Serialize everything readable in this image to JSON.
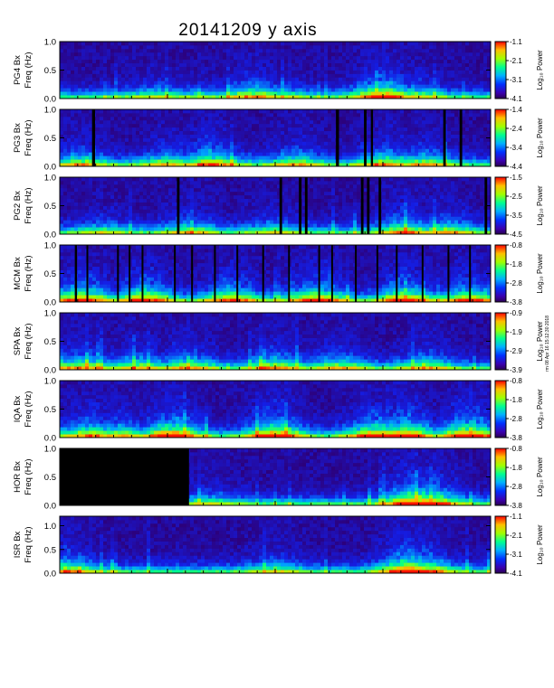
{
  "chart_data": {
    "type": "heatmap",
    "title": "20141209 y axis",
    "colorscale": "rainbow",
    "side_note": "rm 08 Apr 16 15:12:30 2018",
    "panels": [
      {
        "name": "PG4 Bx",
        "ylabel_top": "PG4 Bx",
        "ylabel_bottom": "Freq (Hz)",
        "ylim": [
          0,
          1.0
        ],
        "yticks": [
          "1.0",
          "0.5",
          "0.0"
        ],
        "colorbar_label": "Log₁₀ Power",
        "colorbar_ticks": [
          "-1.1",
          "-2.1",
          "-3.1",
          "-4.1"
        ],
        "colorbar_range": [
          -4.1,
          -1.1
        ],
        "data_gaps": [],
        "activity": [
          [
            0.22,
            0.3
          ],
          [
            0.33,
            0.15
          ],
          [
            0.45,
            0.55
          ],
          [
            0.52,
            0.25
          ],
          [
            0.75,
            0.85
          ],
          [
            0.82,
            0.4
          ]
        ]
      },
      {
        "name": "PG3 Bx",
        "ylabel_top": "PG3 Bx",
        "ylabel_bottom": "Freq (Hz)",
        "ylim": [
          0,
          1.0
        ],
        "yticks": [
          "1.0",
          "0.5",
          "0.0"
        ],
        "colorbar_label": "Log₁₀ Power",
        "colorbar_ticks": [
          "-1.4",
          "-2.4",
          "-3.4",
          "-4.4"
        ],
        "colorbar_range": [
          -4.4,
          -1.4
        ],
        "data_gaps": [
          [
            0.075,
            0.082
          ],
          [
            0.641,
            0.648
          ],
          [
            0.706,
            0.712
          ],
          [
            0.722,
            0.727
          ],
          [
            0.89,
            0.896
          ],
          [
            0.928,
            0.934
          ]
        ],
        "activity": [
          [
            0.05,
            0.5
          ],
          [
            0.25,
            0.45
          ],
          [
            0.35,
            0.7
          ],
          [
            0.55,
            0.5
          ],
          [
            0.75,
            0.6
          ],
          [
            0.85,
            0.5
          ]
        ]
      },
      {
        "name": "PG2 Bx",
        "ylabel_top": "PG2 Bx",
        "ylabel_bottom": "Freq (Hz)",
        "ylim": [
          0,
          1.0
        ],
        "yticks": [
          "1.0",
          "0.5",
          "0.0"
        ],
        "colorbar_label": "Log₁₀ Power",
        "colorbar_ticks": [
          "-1.5",
          "-2.5",
          "-3.5",
          "-4.5"
        ],
        "colorbar_range": [
          -4.5,
          -1.5
        ],
        "data_gaps": [
          [
            0.272,
            0.278
          ],
          [
            0.51,
            0.516
          ],
          [
            0.555,
            0.561
          ],
          [
            0.569,
            0.575
          ],
          [
            0.699,
            0.705
          ],
          [
            0.713,
            0.719
          ],
          [
            0.74,
            0.746
          ],
          [
            0.986,
            0.992
          ]
        ],
        "activity": [
          [
            0.1,
            0.3
          ],
          [
            0.3,
            0.45
          ],
          [
            0.5,
            0.35
          ],
          [
            0.8,
            0.6
          ],
          [
            0.9,
            0.5
          ]
        ]
      },
      {
        "name": "MCM Bx",
        "ylabel_top": "MCM Bx",
        "ylabel_bottom": "Freq (Hz)",
        "ylim": [
          0,
          1.0
        ],
        "yticks": [
          "1.0",
          "0.5",
          "0.0"
        ],
        "colorbar_label": "Log₁₀ Power",
        "colorbar_ticks": [
          "-0.8",
          "-1.8",
          "-2.8",
          "-3.8"
        ],
        "colorbar_range": [
          -3.8,
          -0.8
        ],
        "data_gaps": [
          [
            0.035,
            0.04
          ],
          [
            0.062,
            0.066
          ],
          [
            0.133,
            0.137
          ],
          [
            0.16,
            0.164
          ],
          [
            0.19,
            0.194
          ],
          [
            0.265,
            0.268
          ],
          [
            0.305,
            0.309
          ],
          [
            0.358,
            0.362
          ],
          [
            0.41,
            0.414
          ],
          [
            0.47,
            0.474
          ],
          [
            0.53,
            0.534
          ],
          [
            0.6,
            0.604
          ],
          [
            0.63,
            0.634
          ],
          [
            0.685,
            0.689
          ],
          [
            0.735,
            0.739
          ],
          [
            0.78,
            0.784
          ],
          [
            0.84,
            0.844
          ],
          [
            0.9,
            0.904
          ],
          [
            0.95,
            0.954
          ]
        ],
        "activity": [
          [
            0.05,
            0.8
          ],
          [
            0.2,
            0.8
          ],
          [
            0.4,
            0.7
          ],
          [
            0.6,
            0.8
          ],
          [
            0.8,
            0.8
          ],
          [
            0.95,
            0.7
          ]
        ]
      },
      {
        "name": "SPA Bx",
        "ylabel_top": "SPA Bx",
        "ylabel_bottom": "Freq (Hz)",
        "ylim": [
          0,
          1.0
        ],
        "yticks": [
          "1.0",
          "0.5",
          "0.0"
        ],
        "colorbar_label": "Log₁₀ Power",
        "colorbar_ticks": [
          "-0.9",
          "-1.9",
          "-2.9",
          "-3.9"
        ],
        "colorbar_range": [
          -3.9,
          -0.9
        ],
        "data_gaps": [],
        "activity": [
          [
            0.05,
            0.55
          ],
          [
            0.18,
            0.45
          ],
          [
            0.3,
            0.5
          ],
          [
            0.5,
            0.55
          ],
          [
            0.65,
            0.5
          ],
          [
            0.85,
            0.5
          ]
        ]
      },
      {
        "name": "IQA Bx",
        "ylabel_top": "IQA Bx",
        "ylabel_bottom": "Freq (Hz)",
        "ylim": [
          0,
          1.0
        ],
        "yticks": [
          "1.0",
          "0.5",
          "0.0"
        ],
        "colorbar_label": "Log₁₀ Power",
        "colorbar_ticks": [
          "-0.8",
          "-1.8",
          "-2.8",
          "-3.8"
        ],
        "colorbar_range": [
          -3.8,
          -0.8
        ],
        "data_gaps": [],
        "activity": [
          [
            0.07,
            0.6
          ],
          [
            0.14,
            0.5
          ],
          [
            0.26,
            0.9
          ],
          [
            0.5,
            0.9
          ],
          [
            0.73,
            0.8
          ],
          [
            0.8,
            0.9
          ],
          [
            0.95,
            0.9
          ]
        ]
      },
      {
        "name": "HOR Bx",
        "ylabel_top": "HOR Bx",
        "ylabel_bottom": "Freq (Hz)",
        "ylim": [
          0,
          1.0
        ],
        "yticks": [
          "1.0",
          "0.5",
          "0.0"
        ],
        "colorbar_label": "Log₁₀ Power",
        "colorbar_ticks": [
          "-0.8",
          "-1.8",
          "-2.8",
          "-3.8"
        ],
        "colorbar_range": [
          -3.8,
          -0.8
        ],
        "data_gaps": [
          [
            0.0,
            0.3
          ]
        ],
        "activity": [
          [
            0.35,
            0.3
          ],
          [
            0.82,
            0.95
          ],
          [
            0.86,
            0.8
          ]
        ]
      },
      {
        "name": "ISR Bx",
        "ylabel_top": "ISR Bx",
        "ylabel_bottom": "Freq (Hz)",
        "ylim": [
          0,
          1.2
        ],
        "yticks": [
          "1.0",
          "0.5",
          "0.0"
        ],
        "colorbar_label": "Log₁₀ Power",
        "colorbar_ticks": [
          "-1.1",
          "-2.1",
          "-3.1",
          "-4.1"
        ],
        "colorbar_range": [
          -4.1,
          -1.1
        ],
        "data_gaps": [],
        "activity": [
          [
            0.02,
            0.6
          ],
          [
            0.5,
            0.35
          ],
          [
            0.81,
            0.95
          ],
          [
            0.84,
            0.8
          ]
        ]
      }
    ]
  }
}
